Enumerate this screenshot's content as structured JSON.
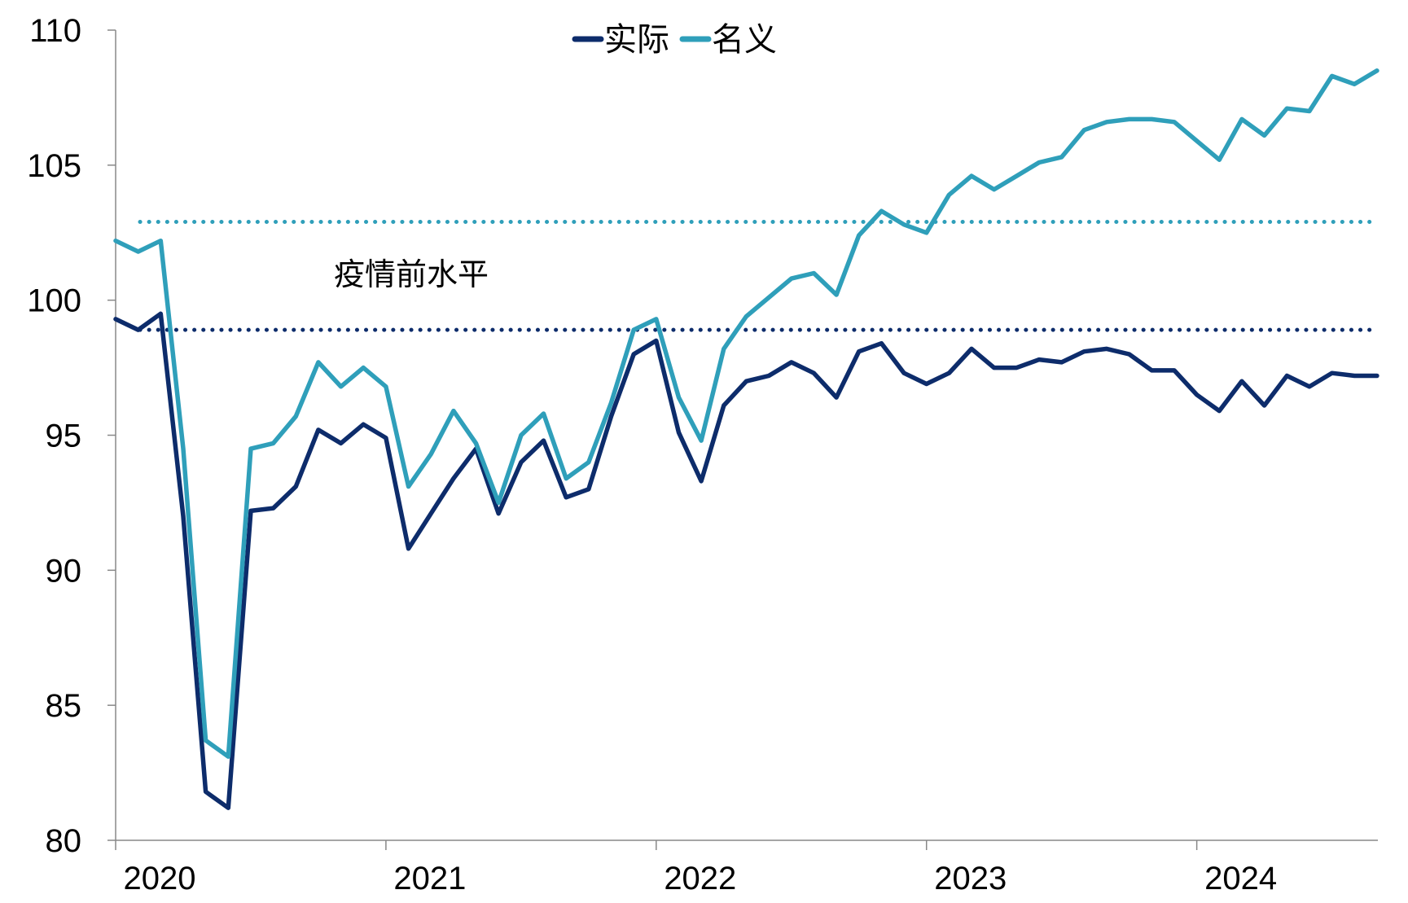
{
  "chart_data": {
    "type": "line",
    "title": "",
    "xlabel": "",
    "ylabel": "",
    "ylim": [
      80,
      110
    ],
    "yticks": [
      80,
      85,
      90,
      95,
      100,
      105,
      110
    ],
    "xlim": [
      2020.0,
      2024.67
    ],
    "xticks": [
      "2020",
      "2021",
      "2022",
      "2023",
      "2024"
    ],
    "legend_position": "top-center",
    "grid": false,
    "series": [
      {
        "name": "实际",
        "color": "#0d2c6b",
        "start": "2020-01",
        "values": [
          99.3,
          98.9,
          99.5,
          92.0,
          81.8,
          81.2,
          92.2,
          92.3,
          93.1,
          95.2,
          94.7,
          95.4,
          94.9,
          90.8,
          92.1,
          93.4,
          94.5,
          92.1,
          94.0,
          94.8,
          92.7,
          93.0,
          95.7,
          98.0,
          98.5,
          95.1,
          93.3,
          96.1,
          97.0,
          97.2,
          97.7,
          97.3,
          96.4,
          98.1,
          98.4,
          97.3,
          96.9,
          97.3,
          98.2,
          97.5,
          97.5,
          97.8,
          97.7,
          98.1,
          98.2,
          98.0,
          97.4,
          97.4,
          96.5,
          95.9,
          97.0,
          96.1,
          97.2,
          96.8,
          97.3,
          97.2,
          97.2
        ]
      },
      {
        "name": "名义",
        "color": "#2f9fba",
        "start": "2020-01",
        "values": [
          102.2,
          101.8,
          102.2,
          94.5,
          83.7,
          83.1,
          94.5,
          94.7,
          95.7,
          97.7,
          96.8,
          97.5,
          96.8,
          93.1,
          94.3,
          95.9,
          94.7,
          92.5,
          95.0,
          95.8,
          93.4,
          94.0,
          96.2,
          98.9,
          99.3,
          96.4,
          94.8,
          98.2,
          99.4,
          100.1,
          100.8,
          101.0,
          100.2,
          102.4,
          103.3,
          102.8,
          102.5,
          103.9,
          104.6,
          104.1,
          104.6,
          105.1,
          105.3,
          106.3,
          106.6,
          106.7,
          106.7,
          106.6,
          105.9,
          105.2,
          106.7,
          106.1,
          107.1,
          107.0,
          108.3,
          108.0,
          108.5
        ]
      }
    ],
    "reference_lines": [
      {
        "value": 102.9,
        "color": "#2f9fba",
        "style": "dotted"
      },
      {
        "value": 98.9,
        "color": "#0d2c6b",
        "style": "dotted"
      }
    ],
    "annotations": [
      {
        "text": "疫情前水平"
      }
    ]
  }
}
